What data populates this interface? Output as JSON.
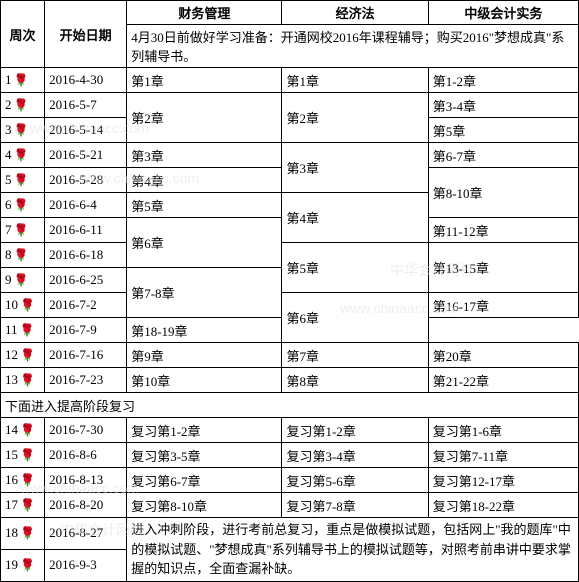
{
  "headers": {
    "week": "周次",
    "date": "开始日期",
    "c1": "财务管理",
    "c2": "经济法",
    "c3": "中级会计实务"
  },
  "prep_note": "4月30日前做好学习准备：开通网校2016年课程辅导；购买2016\"梦想成真\"系列辅导书。",
  "rows": [
    {
      "w": "1",
      "d": "2016-4-30",
      "c1": "第1章",
      "c2": "第1章",
      "c3": "第1-2章",
      "c1s": 1,
      "c2s": 1,
      "c3s": 1
    },
    {
      "w": "2",
      "d": "2016-5-7",
      "c1": "第2章",
      "c2": "第2章",
      "c3": "第3-4章",
      "c1s": 2,
      "c2s": 2,
      "c3s": 1
    },
    {
      "w": "3",
      "d": "2016-5-14",
      "c3": "第5章",
      "c3s": 1
    },
    {
      "w": "4",
      "d": "2016-5-21",
      "c1": "第3章",
      "c2": "第3章",
      "c3": "第6-7章",
      "c1s": 1,
      "c2s": 2,
      "c3s": 1
    },
    {
      "w": "5",
      "d": "2016-5-28",
      "c1": "第4章",
      "c3": "第8-10章",
      "c1s": 1,
      "c3s": 2
    },
    {
      "w": "6",
      "d": "2016-6-4",
      "c1": "第5章",
      "c2": "第4章",
      "c1s": 1,
      "c2s": 2
    },
    {
      "w": "7",
      "d": "2016-6-11",
      "c1": "第6章",
      "c3": "第11-12章",
      "c1s": 2,
      "c3s": 1
    },
    {
      "w": "8",
      "d": "2016-6-18",
      "c2": "第5章",
      "c3": "第13-15章",
      "c2s": 2,
      "c3s": 2
    },
    {
      "w": "9",
      "d": "2016-6-25",
      "c1": "第7-8章",
      "c1s": 2
    },
    {
      "w": "10",
      "d": "2016-7-2",
      "c2": "第6章",
      "c3": "第16-17章",
      "c2s": 2,
      "c3s": 1
    },
    {
      "w": "11",
      "d": "2016-7-9",
      "c3": "第18-19章",
      "c3s": 1
    },
    {
      "w": "12",
      "d": "2016-7-16",
      "c1": "第9章",
      "c2": "第7章",
      "c3": "第20章",
      "c1s": 1,
      "c2s": 1,
      "c3s": 1
    },
    {
      "w": "13",
      "d": "2016-7-23",
      "c1": "第10章",
      "c2": "第8章",
      "c3": "第21-22章",
      "c1s": 1,
      "c2s": 1,
      "c3s": 1
    }
  ],
  "phase2_label": "下面进入提高阶段复习",
  "rows2": [
    {
      "w": "14",
      "d": "2016-7-30",
      "c1": "复习第1-2章",
      "c2": "复习第1-2章",
      "c3": "复习第1-6章"
    },
    {
      "w": "15",
      "d": "2016-8-6",
      "c1": "复习第3-5章",
      "c2": "复习第3-4章",
      "c3": "复习第7-11章"
    },
    {
      "w": "16",
      "d": "2016-8-13",
      "c1": "复习第6-7章",
      "c2": "复习第5-6章",
      "c3": "复习第12-17章"
    },
    {
      "w": "17",
      "d": "2016-8-20",
      "c1": "复习第8-10章",
      "c2": "复习第7-8章",
      "c3": "复习第18-22章"
    }
  ],
  "final_rows": [
    {
      "w": "18",
      "d": "2016-8-27"
    },
    {
      "w": "19",
      "d": "2016-9-3"
    }
  ],
  "final_note": "进入冲刺阶段，进行考前总复习，重点是做模拟试题，包括网上\"我的题库\"中的模拟试题、\"梦想成真\"系列辅导书上的模拟试题等，对照考前串讲中要求掌握的知识点，全面查漏补缺。",
  "watermarks": {
    "url": "www.chinaacc.com",
    "brand": "中华会计网校"
  },
  "rose_glyph": "🌹"
}
